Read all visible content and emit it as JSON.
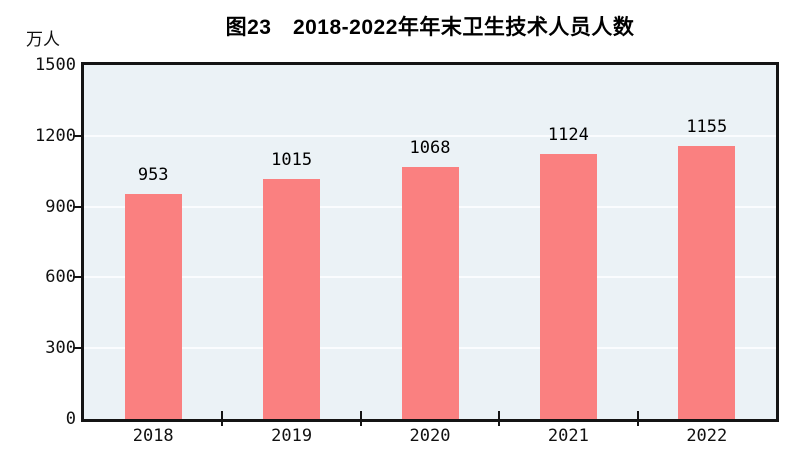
{
  "title": "图23　2018-2022年年末卫生技术人员人数",
  "unit_label": "万人",
  "chart_data": {
    "type": "bar",
    "title": "图23　2018-2022年年末卫生技术人员人数",
    "categories": [
      "2018",
      "2019",
      "2020",
      "2021",
      "2022"
    ],
    "values": [
      953,
      1015,
      1068,
      1124,
      1155
    ],
    "data_labels": [
      "953",
      "1015",
      "1068",
      "1124",
      "1155"
    ],
    "xlabel": "",
    "ylabel": "万人",
    "ylim": [
      0,
      1500
    ],
    "yticks": [
      0,
      300,
      600,
      900,
      1200,
      1500
    ],
    "gridline_values": [
      300,
      600,
      900,
      1200
    ],
    "grid": true,
    "legend": "none",
    "bar_color": "#fa8080",
    "plot_bg_color": "#ebf2f6",
    "gridline_color": "#fafcfe",
    "frame_color": "#141414",
    "text_color": "#000000"
  }
}
